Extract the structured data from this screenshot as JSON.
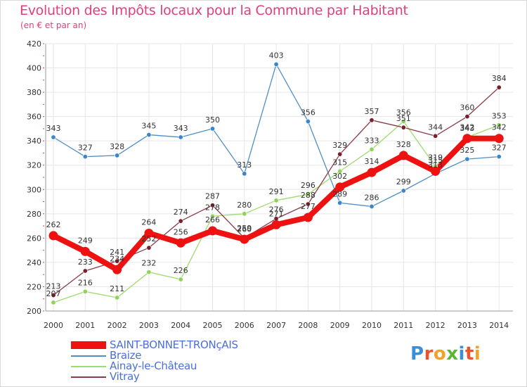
{
  "header": {
    "title": "Evolution des Impôts locaux pour la Commune par Habitant",
    "subtitle": "(en € et par an)"
  },
  "logo": {
    "letters": [
      "P",
      "r",
      "o",
      "x",
      "i",
      "t",
      "i"
    ],
    "colors": [
      "#3a8fd6",
      "#e8542d",
      "#f0a32a",
      "#5bb535",
      "#3a8fd6",
      "#e8542d",
      "#f0a32a"
    ]
  },
  "chart_data": {
    "type": "line",
    "title": "Evolution des Impôts locaux pour la Commune par Habitant",
    "subtitle": "(en € et par an)",
    "xlabel": "",
    "ylabel": "",
    "ylim": [
      200,
      420
    ],
    "yticks": [
      200,
      220,
      240,
      260,
      280,
      300,
      320,
      340,
      360,
      380,
      400,
      420
    ],
    "x": [
      "2000",
      "2001",
      "2002",
      "2003",
      "2004",
      "2005",
      "2006",
      "2007",
      "2008",
      "2009",
      "2010",
      "2011",
      "2012",
      "2013",
      "2014"
    ],
    "grid": true,
    "legend_position": "bottom-left",
    "series": [
      {
        "name": "Braize",
        "color": "#4f8fc6",
        "marker": "#3a86c8",
        "values": [
          343,
          327,
          328,
          345,
          343,
          350,
          313,
          403,
          356,
          289,
          286,
          299,
          313,
          325,
          327
        ],
        "labels": [
          "343",
          "327",
          "328",
          "345",
          "343",
          "350",
          "313",
          "403",
          "356",
          "289",
          "286",
          "299",
          "313",
          "325",
          "327"
        ]
      },
      {
        "name": "Ainay-le-Château",
        "color": "#9ddc6d",
        "marker": "#8fd35a",
        "values": [
          207,
          216,
          211,
          232,
          226,
          278,
          280,
          291,
          296,
          315,
          333,
          356,
          319,
          343,
          353
        ],
        "labels": [
          "207",
          "216",
          "211",
          "232",
          "226",
          "278",
          "280",
          "291",
          "296",
          "315",
          "333",
          "356",
          "319",
          "343",
          "353"
        ]
      },
      {
        "name": "Vitray",
        "color": "#8b3b48",
        "marker": "#7a1f2c",
        "values": [
          213,
          233,
          241,
          252,
          274,
          287,
          260,
          276,
          288,
          329,
          357,
          351,
          344,
          360,
          384
        ],
        "labels": [
          "213",
          "233",
          "241",
          "252",
          "274",
          "287",
          "260",
          "276",
          "288",
          "329",
          "357",
          "351",
          "344",
          "360",
          "384"
        ]
      },
      {
        "name": "SAINT-BONNET-TRONçAIS",
        "color": "#ee1111",
        "marker": "#ee1111",
        "values": [
          262,
          249,
          234,
          264,
          256,
          266,
          259,
          271,
          277,
          302,
          314,
          328,
          315,
          342,
          342
        ],
        "labels": [
          "262",
          "249",
          "234",
          "264",
          "256",
          "266",
          "259",
          "271",
          "277",
          "302",
          "314",
          "328",
          "315",
          "342",
          "342"
        ]
      }
    ],
    "legend": [
      {
        "name": "SAINT-BONNET-TRONçAIS",
        "color": "#ee1111",
        "thickness": "thick"
      },
      {
        "name": "Braize",
        "color": "#4f8fc6",
        "thickness": "thin"
      },
      {
        "name": "Ainay-le-Château",
        "color": "#9ddc6d",
        "thickness": "thin"
      },
      {
        "name": "Vitray",
        "color": "#8b3b48",
        "thickness": "thin"
      }
    ]
  }
}
